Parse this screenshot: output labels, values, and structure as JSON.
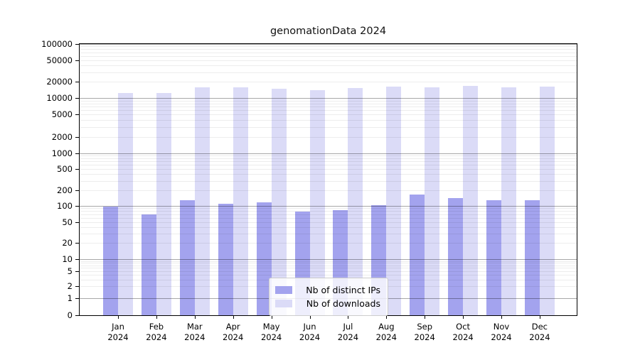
{
  "chart_data": {
    "type": "bar",
    "title": "genomationData 2024",
    "x_categories_line1": [
      "Jan",
      "Feb",
      "Mar",
      "Apr",
      "May",
      "Jun",
      "Jul",
      "Aug",
      "Sep",
      "Oct",
      "Nov",
      "Dec"
    ],
    "x_categories_line2": "2024",
    "series": [
      {
        "name": "Nb of distinct IPs",
        "color": "#a3a3ee",
        "values": [
          98,
          70,
          130,
          110,
          118,
          78,
          82,
          102,
          163,
          140,
          130,
          128
        ]
      },
      {
        "name": "Nb of downloads",
        "color": "#dbdbf7",
        "values": [
          12300,
          12300,
          15600,
          15700,
          14900,
          13900,
          15400,
          16300,
          15800,
          16700,
          15800,
          16300
        ]
      }
    ],
    "y_ticks": [
      0,
      1,
      2,
      5,
      10,
      20,
      50,
      100,
      200,
      500,
      1000,
      2000,
      5000,
      10000,
      20000,
      50000,
      100000
    ],
    "y_major_gridlines": [
      1,
      10,
      100,
      1000,
      10000,
      100000
    ],
    "y_scale": "log (0 pinned to baseline)",
    "y_range": [
      0,
      100000
    ],
    "grid": "on",
    "legend_position": "lower center",
    "colors": {
      "axis": "#000000",
      "major_grid": "#aaaaaa",
      "minor_grid": "#ebebeb"
    }
  }
}
